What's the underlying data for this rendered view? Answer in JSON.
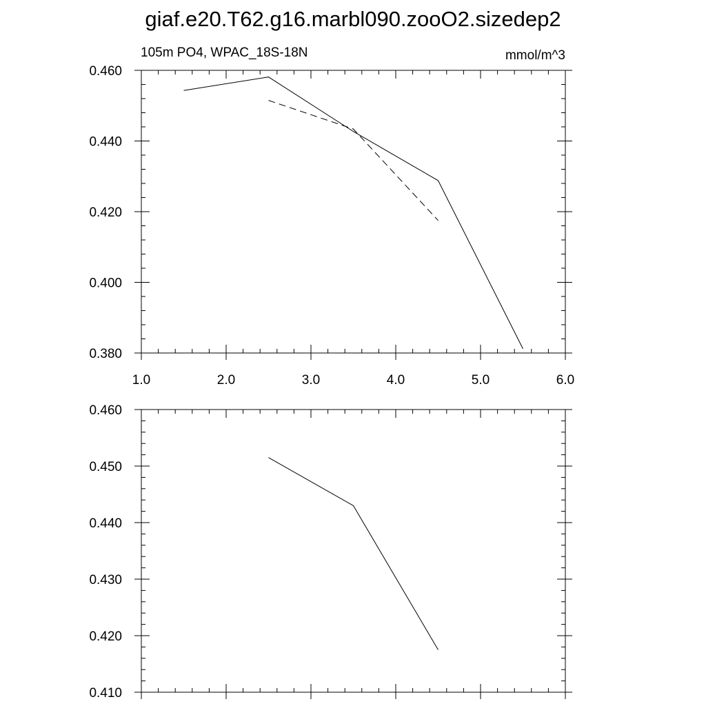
{
  "title": "giaf.e20.T62.g16.marbl090.zooO2.sizedep2",
  "chart_data": [
    {
      "type": "line",
      "left_label": "105m PO4, WPAC_18S-18N",
      "right_label": "mmol/m^3",
      "xlim": [
        1.0,
        6.0
      ],
      "ylim": [
        0.38,
        0.46
      ],
      "x_ticks": [
        "1.0",
        "2.0",
        "3.0",
        "4.0",
        "5.0",
        "6.0"
      ],
      "y_ticks": [
        "0.380",
        "0.400",
        "0.420",
        "0.440",
        "0.460"
      ],
      "series": [
        {
          "style": "solid",
          "color": "#000000",
          "x": [
            1.5,
            2.5,
            3.5,
            4.5,
            5.5
          ],
          "y": [
            0.4543,
            0.4581,
            0.4427,
            0.4288,
            0.3812
          ]
        },
        {
          "style": "dashed",
          "color": "#000000",
          "x": [
            2.5,
            3.5,
            4.5
          ],
          "y": [
            0.4515,
            0.4434,
            0.4175
          ]
        }
      ]
    },
    {
      "type": "line",
      "xlim": [
        1.0,
        6.0
      ],
      "ylim": [
        0.41,
        0.46
      ],
      "x_ticks": [],
      "y_ticks": [
        "0.410",
        "0.420",
        "0.430",
        "0.440",
        "0.450",
        "0.460"
      ],
      "series": [
        {
          "style": "solid",
          "color": "#000000",
          "x": [
            2.5,
            3.5,
            4.5
          ],
          "y": [
            0.4515,
            0.443,
            0.4175
          ]
        }
      ]
    }
  ]
}
